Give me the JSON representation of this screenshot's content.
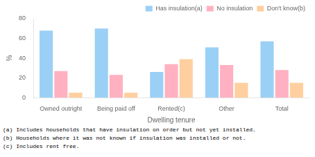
{
  "chart_data": {
    "type": "bar",
    "categories": [
      "Owned outright",
      "Being paid off",
      "Rented(c)",
      "Other",
      "Total"
    ],
    "series": [
      {
        "name": "Has insulation(a)",
        "values": [
          68,
          70,
          26,
          51,
          57
        ]
      },
      {
        "name": "No insulation",
        "values": [
          27,
          23,
          34,
          33,
          28
        ]
      },
      {
        "name": "Don't know(b)",
        "values": [
          5,
          5,
          39,
          15,
          15
        ]
      }
    ],
    "xlabel": "Dwelling tenure",
    "ylabel": "%",
    "ylim": [
      0,
      80
    ],
    "yticks": [
      0,
      20,
      40,
      60,
      80
    ],
    "grid": false,
    "legend": "upper right",
    "annotations": [
      "(a) Includes households that have insulation on order but not yet installed.",
      "(b) Households where it was not known if insulation was installed or not.",
      "(c) Includes rent free."
    ]
  }
}
